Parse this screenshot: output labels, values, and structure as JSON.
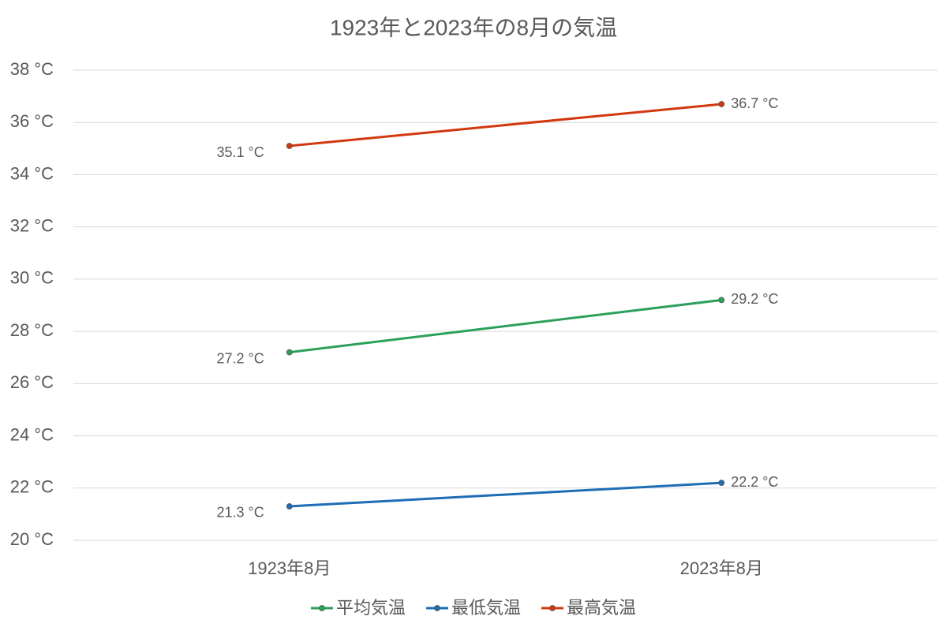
{
  "chart_data": {
    "type": "line",
    "title": "1923年と2023年の8月の気温",
    "categories": [
      "1923年8月",
      "2023年8月"
    ],
    "series": [
      {
        "name": "平均気温",
        "color": "#2ca05a",
        "values": [
          27.2,
          29.2
        ],
        "value_labels": [
          "27.2 °C",
          "29.2 °C"
        ]
      },
      {
        "name": "最低気温",
        "color": "#1f6db5",
        "values": [
          21.3,
          22.2
        ],
        "value_labels": [
          "21.3 °C",
          "22.2 °C"
        ]
      },
      {
        "name": "最高気温",
        "color": "#d2380f",
        "values": [
          35.1,
          36.7
        ],
        "value_labels": [
          "35.1 °C",
          "36.7 °C"
        ]
      }
    ],
    "ylim": [
      20,
      38
    ],
    "yticks": [
      {
        "value": 20,
        "label": "20 °C"
      },
      {
        "value": 22,
        "label": "22 °C"
      },
      {
        "value": 24,
        "label": "24 °C"
      },
      {
        "value": 26,
        "label": "26 °C"
      },
      {
        "value": 28,
        "label": "28 °C"
      },
      {
        "value": 30,
        "label": "30 °C"
      },
      {
        "value": 32,
        "label": "32 °C"
      },
      {
        "value": 34,
        "label": "34 °C"
      },
      {
        "value": 36,
        "label": "36 °C"
      },
      {
        "value": 38,
        "label": "38 °C"
      }
    ],
    "grid": true,
    "legend": "bottom"
  }
}
